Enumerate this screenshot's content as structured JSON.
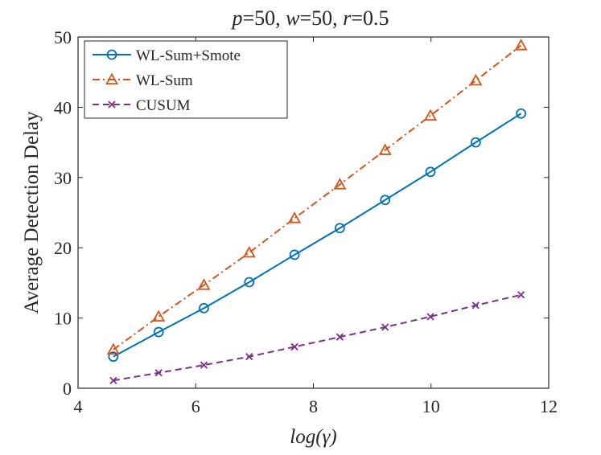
{
  "chart_data": {
    "type": "line",
    "title": {
      "p_symbol": "p",
      "p_value": "=50, ",
      "w_symbol": "w",
      "w_value": "=50, ",
      "r_symbol": "r",
      "r_value": "=0.5"
    },
    "xlabel": "log(γ)",
    "ylabel": "Average Detection Delay",
    "xlim": [
      4,
      12
    ],
    "ylim": [
      0,
      50
    ],
    "xticks": [
      4,
      6,
      8,
      10,
      12
    ],
    "yticks": [
      0,
      10,
      20,
      30,
      40,
      50
    ],
    "grid": false,
    "legend_position": "top-left",
    "x": [
      4.6,
      5.37,
      6.14,
      6.91,
      7.68,
      8.45,
      9.22,
      9.99,
      10.76,
      11.53
    ],
    "series": [
      {
        "name": "WL-Sum+Smote",
        "color": "#0072BD",
        "line_style": "solid",
        "marker": "circle",
        "values": [
          4.5,
          8.0,
          11.4,
          15.1,
          19.0,
          22.8,
          26.8,
          30.8,
          35.0,
          39.1
        ]
      },
      {
        "name": "WL-Sum",
        "color": "#D95319",
        "line_style": "dash-dot",
        "marker": "triangle",
        "values": [
          5.5,
          10.2,
          14.7,
          19.3,
          24.2,
          29.0,
          33.9,
          38.8,
          43.8,
          48.8
        ]
      },
      {
        "name": "CUSUM",
        "color": "#7E2F8E",
        "line_style": "dashed",
        "marker": "x",
        "values": [
          1.1,
          2.2,
          3.3,
          4.5,
          5.9,
          7.3,
          8.7,
          10.2,
          11.8,
          13.3
        ]
      }
    ]
  }
}
